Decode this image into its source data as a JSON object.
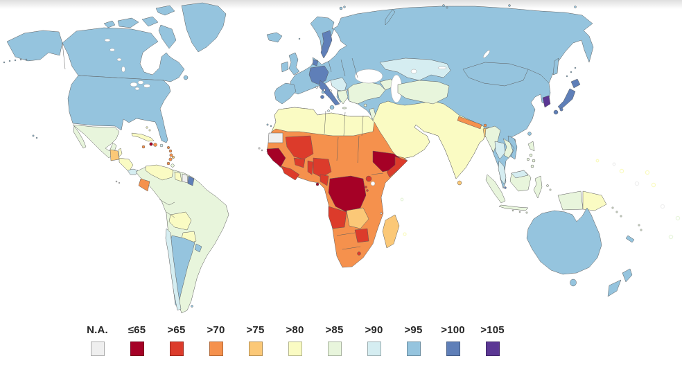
{
  "legend": {
    "bins": [
      {
        "label": "N.A.",
        "color": "#efefef",
        "border": "#ababab"
      },
      {
        "label": "≤65",
        "color": "#a50126"
      },
      {
        "label": ">65",
        "color": "#dc3b2b"
      },
      {
        "label": ">70",
        "color": "#f5914d"
      },
      {
        "label": ">75",
        "color": "#fbc877"
      },
      {
        "label": ">80",
        "color": "#fafbc3"
      },
      {
        "label": ">85",
        "color": "#e8f5dc"
      },
      {
        "label": ">90",
        "color": "#d5edf1"
      },
      {
        "label": ">95",
        "color": "#95c4de"
      },
      {
        "label": ">100",
        "color": "#5f7fb8"
      },
      {
        "label": ">105",
        "color": "#5b3794"
      }
    ]
  },
  "chart_data": {
    "type": "choropleth",
    "title": "",
    "legend_position": "bottom",
    "legend_bins": [
      "N.A.",
      "≤65",
      ">65",
      ">70",
      ">75",
      ">80",
      ">85",
      ">90",
      ">95",
      ">100",
      ">105"
    ],
    "colors": {
      "na": "#efefef",
      "le65": "#a50126",
      "gt65": "#dc3b2b",
      "gt70": "#f5914d",
      "gt75": "#fbc877",
      "gt80": "#fafbc3",
      "gt85": "#e8f5dc",
      "gt90": "#d5edf1",
      "gt95": "#95c4de",
      "gt100": "#5f7fb8",
      "gt105": "#5b3794"
    },
    "regions": {
      "eurasia": ">95",
      "africa": ">70",
      "south-america": ">85",
      "canada": ">95",
      "usa": ">95",
      "alaska": ">95",
      "aleutian-islands": ">95",
      "canadian-arctic": ">95",
      "greenland": ">95",
      "newfoundland": ">95",
      "hawaii": ">95",
      "mexico": ">85",
      "baja-california": ">85",
      "guatemala": ">75",
      "belize": ">80",
      "honduras-nicaragua": ">80",
      "costa-rica-panama": ">90",
      "cuba": ">80",
      "bahamas": ">80",
      "jamaica": ">70",
      "haiti": "≤65",
      "dominican-republic": ">70",
      "puerto-rico": ">90",
      "lesser-antilles": ">70",
      "barbados": ">75",
      "trinidad-tobago": ">85",
      "venezuela": ">80",
      "guyana": ">80",
      "suriname": "N.A.",
      "french-guiana": ">100",
      "ecuador": ">70",
      "bolivia": ">80",
      "paraguay": ">80",
      "chile": ">90",
      "argentina": ">95",
      "uruguay": ">95",
      "falkland-islands": ">95",
      "galapagos": "N.A.",
      "iceland": ">95",
      "ireland": ">95",
      "united-kingdom": ">95",
      "faroe-islands": ">95",
      "iberia": ">95",
      "sweden": ">100",
      "denmark": ">100",
      "germany-alpine": ">100",
      "italy": ">100",
      "sardinia": ">100",
      "corsica": ">95",
      "sicily": ">95",
      "balkans": ">90",
      "greece": ">85",
      "crete": ">85",
      "turkey": ">85",
      "caucasus": ">85",
      "cyprus": ">85",
      "malta": ">90",
      "european-microstates": "N.A.",
      "levant": ">85",
      "israel": ">90",
      "southwest-asia": ">80",
      "kazakhstan": ">90",
      "central-asia": ">85",
      "nepal": ">70",
      "bhutan": ">70",
      "bangladesh": ">75",
      "sri-lanka": ">75",
      "myanmar": ">85",
      "thailand": ">90",
      "malay-peninsula": ">90",
      "laos-cambodia": ">85",
      "vietnam": ">95",
      "singapore": ">100",
      "indonesia": ">85",
      "malaysia-borneo": ">90",
      "philippines": ">85",
      "west-papua": ">85",
      "papua-new-guinea": ">80",
      "south-korea": ">105",
      "japan": ">100",
      "sakhalin": ">95",
      "kuril-islands": ">95",
      "taiwan": ">95",
      "hainan": ">90",
      "svalbard": ">95",
      "novaya-zemlya": ">95",
      "russian-arctic": ">95",
      "western-sahara": "N.A.",
      "north-africa": ">80",
      "mali": ">65",
      "senegal-guinea": "≤65",
      "liberia-ivory-coast": ">65",
      "burkina-faso": ">65",
      "togo-benin": ">65",
      "nigeria": ">65",
      "cameroon": ">65",
      "equatorial-guinea": "≤65",
      "drc": "≤65",
      "ethiopia": "≤65",
      "somalia": ">65",
      "uganda": ">65",
      "rwanda-burundi": ">65",
      "angola": ">65",
      "zambia": ">75",
      "zimbabwe": ">65",
      "lesotho": ">65",
      "madagascar": ">75",
      "cape-verde": "N.A.",
      "canary-islands": ">95",
      "comoros": "N.A.",
      "mauritius": ">80",
      "seychelles": ">85",
      "australia": ">95",
      "tasmania": ">95",
      "new-zealand": ">95",
      "new-caledonia": ">95",
      "solomon-islands": ">85",
      "vanuatu": ">85",
      "fiji": ">85",
      "pacific-yellow": ">80",
      "pacific-gray": "N.A.",
      "pacific-green": ">85"
    }
  }
}
